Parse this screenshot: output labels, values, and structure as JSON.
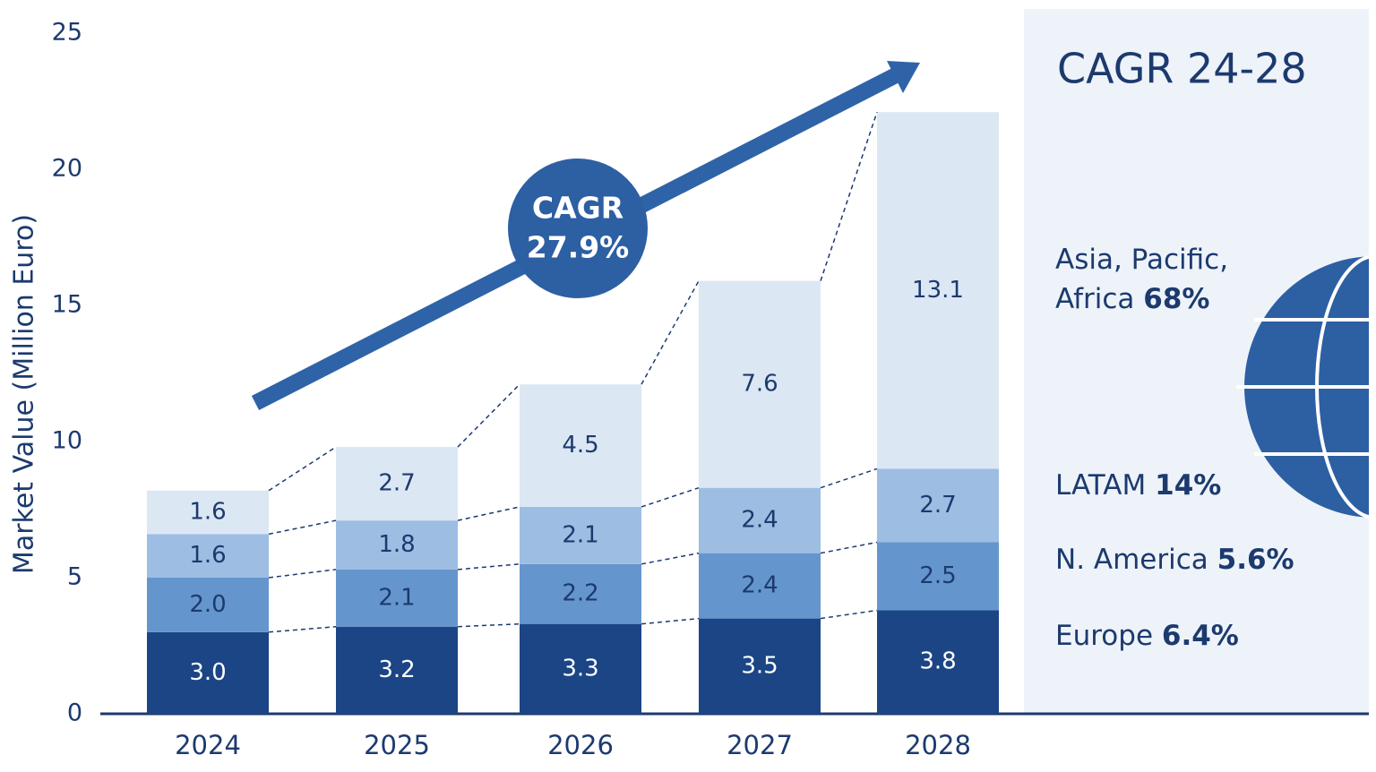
{
  "chart_data": {
    "type": "stacked_bar",
    "y_label": "Market Value (Million Euro)",
    "categories": [
      "2024",
      "2025",
      "2026",
      "2027",
      "2028"
    ],
    "series": [
      {
        "color": "#1b4585",
        "values": [
          3.0,
          3.2,
          3.3,
          3.5,
          3.8
        ],
        "value_labels": [
          "3.0",
          "3.2",
          "3.3",
          "3.5",
          "3.8"
        ]
      },
      {
        "color": "#6496cd",
        "values": [
          2.0,
          2.1,
          2.2,
          2.4,
          2.5
        ],
        "value_labels": [
          "2.0",
          "2.1",
          "2.2",
          "2.4",
          "2.5"
        ]
      },
      {
        "color": "#9dbde3",
        "values": [
          1.6,
          1.8,
          2.1,
          2.4,
          2.7
        ],
        "value_labels": [
          "1.6",
          "1.8",
          "2.1",
          "2.4",
          "2.7"
        ]
      },
      {
        "color": "#dce7f4",
        "values": [
          1.6,
          2.7,
          4.5,
          7.6,
          13.1
        ],
        "value_labels": [
          "1.6",
          "2.7",
          "4.5",
          "7.6",
          "13.1"
        ]
      }
    ],
    "ylim": [
      0,
      25
    ],
    "yticks": [
      0,
      5,
      10,
      15,
      20,
      25
    ],
    "badge": {
      "label": "CAGR",
      "value": "27.9%"
    },
    "panel": {
      "title": "CAGR 24-28",
      "regions": [
        {
          "name": "Asia, Pacific, Africa",
          "share": "68%"
        },
        {
          "name": "LATAM",
          "share": "14%"
        },
        {
          "name": "N. America",
          "share": "5.6%"
        },
        {
          "name": "Europe",
          "share": "6.4%"
        }
      ]
    }
  }
}
